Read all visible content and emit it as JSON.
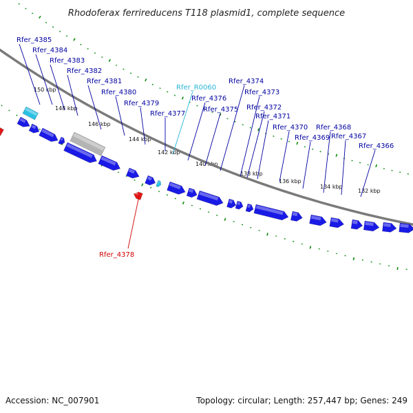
{
  "title": "Rhodoferax ferrireducens T118 plasmid1, complete sequence",
  "footer": {
    "accession": "Accession: NC_007901",
    "summary": "Topology: circular; Length: 257,447 bp; Genes: 249"
  },
  "colors": {
    "forward_gene": "#1a1ae6",
    "rna_gene": "#2bc0e4",
    "pseudo_gene": "#b4b4b4",
    "reverse_gene": "#e01818",
    "backbone": "#7a7a7a",
    "tick": "#0a8a0a",
    "label_forward": "#0000a0",
    "label_rna": "#28b4d8",
    "label_reverse": "#d00000"
  },
  "ticks": [
    {
      "label": "150 kbp"
    },
    {
      "label": "148 kbp"
    },
    {
      "label": "146 kbp"
    },
    {
      "label": "144 kbp"
    },
    {
      "label": "142 kbp"
    },
    {
      "label": "140 kbp"
    },
    {
      "label": "138 kbp"
    },
    {
      "label": "136 kbp"
    },
    {
      "label": "134 kbp"
    },
    {
      "label": "132 kbp"
    }
  ],
  "gene_labels": [
    {
      "name": "Rfer_4385",
      "kind": "forward"
    },
    {
      "name": "Rfer_4384",
      "kind": "forward"
    },
    {
      "name": "Rfer_4383",
      "kind": "forward"
    },
    {
      "name": "Rfer_4382",
      "kind": "forward"
    },
    {
      "name": "Rfer_4381",
      "kind": "forward"
    },
    {
      "name": "Rfer_4380",
      "kind": "forward"
    },
    {
      "name": "Rfer_4379",
      "kind": "forward"
    },
    {
      "name": "Rfer_4377",
      "kind": "forward"
    },
    {
      "name": "Rfer_R0060",
      "kind": "rna"
    },
    {
      "name": "Rfer_4376",
      "kind": "forward"
    },
    {
      "name": "Rfer_4375",
      "kind": "forward"
    },
    {
      "name": "Rfer_4374",
      "kind": "forward"
    },
    {
      "name": "Rfer_4373",
      "kind": "forward"
    },
    {
      "name": "Rfer_4372",
      "kind": "forward"
    },
    {
      "name": "Rfer_4371",
      "kind": "forward"
    },
    {
      "name": "Rfer_4370",
      "kind": "forward"
    },
    {
      "name": "Rfer_4369",
      "kind": "forward"
    },
    {
      "name": "Rfer_4368",
      "kind": "forward"
    },
    {
      "name": "Rfer_4367",
      "kind": "forward"
    },
    {
      "name": "Rfer_4366",
      "kind": "forward"
    },
    {
      "name": "Rfer_4378",
      "kind": "reverse"
    }
  ]
}
